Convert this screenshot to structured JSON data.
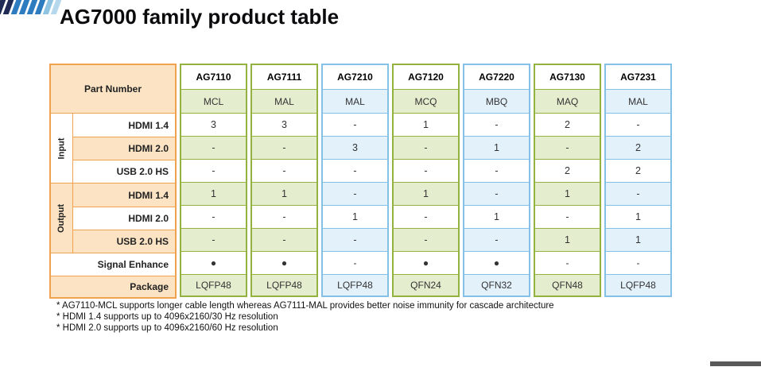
{
  "page": {
    "title": "AG7000 family product table"
  },
  "logo": {
    "name": "brand-logo-stripes",
    "stripe_colors": [
      "#1f2b55",
      "#1f2b55",
      "#2e7cc0",
      "#2e7cc0",
      "#2e7cc0",
      "#2e7cc0",
      "#8fc3e2",
      "#b5d8ec"
    ]
  },
  "table": {
    "part_number_label": "Part Number",
    "groups": [
      {
        "label": "Input"
      },
      {
        "label": "Output"
      }
    ],
    "row_labels": [
      "HDMI 1.4",
      "HDMI 2.0",
      "USB 2.0 HS",
      "HDMI 1.4",
      "HDMI 2.0",
      "USB 2.0 HS"
    ],
    "signal_enhance_label": "Signal Enhance",
    "package_label": "Package",
    "columns": [
      {
        "part": "AG7110",
        "variant": "MCL",
        "theme": "green",
        "values": [
          "3",
          "-",
          "-",
          "1",
          "-",
          "-"
        ],
        "signal_enhance": "●",
        "package": "LQFP48"
      },
      {
        "part": "AG7111",
        "variant": "MAL",
        "theme": "green",
        "values": [
          "3",
          "-",
          "-",
          "1",
          "-",
          "-"
        ],
        "signal_enhance": "●",
        "package": "LQFP48"
      },
      {
        "part": "AG7210",
        "variant": "MAL",
        "theme": "blue",
        "values": [
          "-",
          "3",
          "-",
          "-",
          "1",
          "-"
        ],
        "signal_enhance": "-",
        "package": "LQFP48"
      },
      {
        "part": "AG7120",
        "variant": "MCQ",
        "theme": "green",
        "values": [
          "1",
          "-",
          "-",
          "1",
          "-",
          "-"
        ],
        "signal_enhance": "●",
        "package": "QFN24"
      },
      {
        "part": "AG7220",
        "variant": "MBQ",
        "theme": "blue",
        "values": [
          "-",
          "1",
          "-",
          "-",
          "1",
          "-"
        ],
        "signal_enhance": "●",
        "package": "QFN32"
      },
      {
        "part": "AG7130",
        "variant": "MAQ",
        "theme": "green",
        "values": [
          "2",
          "-",
          "2",
          "1",
          "-",
          "1"
        ],
        "signal_enhance": "-",
        "package": "QFN48"
      },
      {
        "part": "AG7231",
        "variant": "MAL",
        "theme": "blue",
        "values": [
          "-",
          "2",
          "2",
          "-",
          "1",
          "1"
        ],
        "signal_enhance": "-",
        "package": "LQFP48"
      }
    ]
  },
  "footnotes": [
    "* AG7110-MCL supports longer cable length whereas AG7111-MAL provides better noise immunity for cascade architecture",
    "* HDMI 1.4 supports up to 4096x2160/30 Hz resolution",
    "* HDMI 2.0 supports up to 4096x2160/60 Hz resolution"
  ],
  "colors": {
    "orange_border": "#f0a24f",
    "peach_fill": "#fbe3c3",
    "green_border": "#94b23f",
    "green_fill": "#e4eecf",
    "blue_border": "#85c0e6",
    "blue_fill": "#e3f1fb",
    "footer_bar": "#595959"
  }
}
